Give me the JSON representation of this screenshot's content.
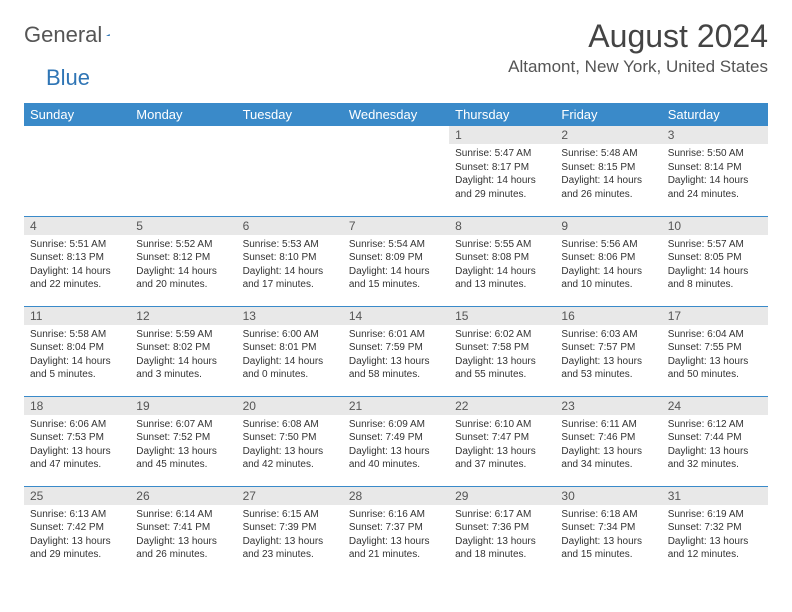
{
  "logo": {
    "general": "General",
    "blue": "Blue"
  },
  "title": "August 2024",
  "location": "Altamont, New York, United States",
  "weekday_headers": [
    "Sunday",
    "Monday",
    "Tuesday",
    "Wednesday",
    "Thursday",
    "Friday",
    "Saturday"
  ],
  "colors": {
    "header_bg": "#3a8ac9",
    "header_text": "#ffffff",
    "daynum_bg": "#e8e8e8",
    "row_border": "#3a8ac9",
    "logo_blue": "#2f75b5",
    "text": "#333333"
  },
  "rows": [
    [
      {
        "num": "",
        "lines": []
      },
      {
        "num": "",
        "lines": []
      },
      {
        "num": "",
        "lines": []
      },
      {
        "num": "",
        "lines": []
      },
      {
        "num": "1",
        "lines": [
          "Sunrise: 5:47 AM",
          "Sunset: 8:17 PM",
          "Daylight: 14 hours and 29 minutes."
        ]
      },
      {
        "num": "2",
        "lines": [
          "Sunrise: 5:48 AM",
          "Sunset: 8:15 PM",
          "Daylight: 14 hours and 26 minutes."
        ]
      },
      {
        "num": "3",
        "lines": [
          "Sunrise: 5:50 AM",
          "Sunset: 8:14 PM",
          "Daylight: 14 hours and 24 minutes."
        ]
      }
    ],
    [
      {
        "num": "4",
        "lines": [
          "Sunrise: 5:51 AM",
          "Sunset: 8:13 PM",
          "Daylight: 14 hours and 22 minutes."
        ]
      },
      {
        "num": "5",
        "lines": [
          "Sunrise: 5:52 AM",
          "Sunset: 8:12 PM",
          "Daylight: 14 hours and 20 minutes."
        ]
      },
      {
        "num": "6",
        "lines": [
          "Sunrise: 5:53 AM",
          "Sunset: 8:10 PM",
          "Daylight: 14 hours and 17 minutes."
        ]
      },
      {
        "num": "7",
        "lines": [
          "Sunrise: 5:54 AM",
          "Sunset: 8:09 PM",
          "Daylight: 14 hours and 15 minutes."
        ]
      },
      {
        "num": "8",
        "lines": [
          "Sunrise: 5:55 AM",
          "Sunset: 8:08 PM",
          "Daylight: 14 hours and 13 minutes."
        ]
      },
      {
        "num": "9",
        "lines": [
          "Sunrise: 5:56 AM",
          "Sunset: 8:06 PM",
          "Daylight: 14 hours and 10 minutes."
        ]
      },
      {
        "num": "10",
        "lines": [
          "Sunrise: 5:57 AM",
          "Sunset: 8:05 PM",
          "Daylight: 14 hours and 8 minutes."
        ]
      }
    ],
    [
      {
        "num": "11",
        "lines": [
          "Sunrise: 5:58 AM",
          "Sunset: 8:04 PM",
          "Daylight: 14 hours and 5 minutes."
        ]
      },
      {
        "num": "12",
        "lines": [
          "Sunrise: 5:59 AM",
          "Sunset: 8:02 PM",
          "Daylight: 14 hours and 3 minutes."
        ]
      },
      {
        "num": "13",
        "lines": [
          "Sunrise: 6:00 AM",
          "Sunset: 8:01 PM",
          "Daylight: 14 hours and 0 minutes."
        ]
      },
      {
        "num": "14",
        "lines": [
          "Sunrise: 6:01 AM",
          "Sunset: 7:59 PM",
          "Daylight: 13 hours and 58 minutes."
        ]
      },
      {
        "num": "15",
        "lines": [
          "Sunrise: 6:02 AM",
          "Sunset: 7:58 PM",
          "Daylight: 13 hours and 55 minutes."
        ]
      },
      {
        "num": "16",
        "lines": [
          "Sunrise: 6:03 AM",
          "Sunset: 7:57 PM",
          "Daylight: 13 hours and 53 minutes."
        ]
      },
      {
        "num": "17",
        "lines": [
          "Sunrise: 6:04 AM",
          "Sunset: 7:55 PM",
          "Daylight: 13 hours and 50 minutes."
        ]
      }
    ],
    [
      {
        "num": "18",
        "lines": [
          "Sunrise: 6:06 AM",
          "Sunset: 7:53 PM",
          "Daylight: 13 hours and 47 minutes."
        ]
      },
      {
        "num": "19",
        "lines": [
          "Sunrise: 6:07 AM",
          "Sunset: 7:52 PM",
          "Daylight: 13 hours and 45 minutes."
        ]
      },
      {
        "num": "20",
        "lines": [
          "Sunrise: 6:08 AM",
          "Sunset: 7:50 PM",
          "Daylight: 13 hours and 42 minutes."
        ]
      },
      {
        "num": "21",
        "lines": [
          "Sunrise: 6:09 AM",
          "Sunset: 7:49 PM",
          "Daylight: 13 hours and 40 minutes."
        ]
      },
      {
        "num": "22",
        "lines": [
          "Sunrise: 6:10 AM",
          "Sunset: 7:47 PM",
          "Daylight: 13 hours and 37 minutes."
        ]
      },
      {
        "num": "23",
        "lines": [
          "Sunrise: 6:11 AM",
          "Sunset: 7:46 PM",
          "Daylight: 13 hours and 34 minutes."
        ]
      },
      {
        "num": "24",
        "lines": [
          "Sunrise: 6:12 AM",
          "Sunset: 7:44 PM",
          "Daylight: 13 hours and 32 minutes."
        ]
      }
    ],
    [
      {
        "num": "25",
        "lines": [
          "Sunrise: 6:13 AM",
          "Sunset: 7:42 PM",
          "Daylight: 13 hours and 29 minutes."
        ]
      },
      {
        "num": "26",
        "lines": [
          "Sunrise: 6:14 AM",
          "Sunset: 7:41 PM",
          "Daylight: 13 hours and 26 minutes."
        ]
      },
      {
        "num": "27",
        "lines": [
          "Sunrise: 6:15 AM",
          "Sunset: 7:39 PM",
          "Daylight: 13 hours and 23 minutes."
        ]
      },
      {
        "num": "28",
        "lines": [
          "Sunrise: 6:16 AM",
          "Sunset: 7:37 PM",
          "Daylight: 13 hours and 21 minutes."
        ]
      },
      {
        "num": "29",
        "lines": [
          "Sunrise: 6:17 AM",
          "Sunset: 7:36 PM",
          "Daylight: 13 hours and 18 minutes."
        ]
      },
      {
        "num": "30",
        "lines": [
          "Sunrise: 6:18 AM",
          "Sunset: 7:34 PM",
          "Daylight: 13 hours and 15 minutes."
        ]
      },
      {
        "num": "31",
        "lines": [
          "Sunrise: 6:19 AM",
          "Sunset: 7:32 PM",
          "Daylight: 13 hours and 12 minutes."
        ]
      }
    ]
  ]
}
